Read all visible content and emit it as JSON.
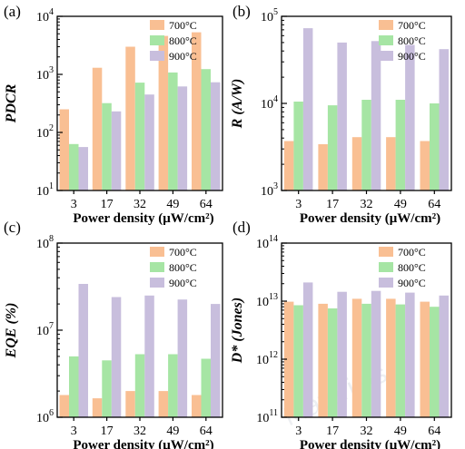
{
  "chart_data": [
    {
      "panel": "(a)",
      "type": "bar",
      "ylabel": "PDCR",
      "xlabel": "Power density (μW/cm²)",
      "categories": [
        "3",
        "17",
        "32",
        "49",
        "64"
      ],
      "yscale": "log",
      "ylim": [
        10,
        10000
      ],
      "yticks": [
        {
          "exp": "1"
        },
        {
          "exp": "2"
        },
        {
          "exp": "3"
        },
        {
          "exp": "4"
        }
      ],
      "legend_position": "top-right",
      "series": [
        {
          "name": "700°C",
          "color": "#f9bf93",
          "values": [
            250,
            1300,
            3000,
            4600,
            5300
          ]
        },
        {
          "name": "800°C",
          "color": "#a6e5a4",
          "values": [
            63,
            320,
            720,
            1080,
            1230
          ]
        },
        {
          "name": "900°C",
          "color": "#c8bedd",
          "values": [
            56,
            230,
            450,
            620,
            730
          ]
        }
      ]
    },
    {
      "panel": "(b)",
      "type": "bar",
      "ylabel": "R (A/W)",
      "xlabel": "Power density (μW/cm²)",
      "categories": [
        "3",
        "17",
        "32",
        "49",
        "64"
      ],
      "yscale": "log",
      "ylim": [
        1000,
        100000
      ],
      "yticks": [
        {
          "exp": "3"
        },
        {
          "exp": "4"
        },
        {
          "exp": "5"
        }
      ],
      "legend_position": "top-right",
      "series": [
        {
          "name": "700°C",
          "color": "#f9bf93",
          "values": [
            3700,
            3400,
            4100,
            4100,
            3700
          ]
        },
        {
          "name": "800°C",
          "color": "#a6e5a4",
          "values": [
            10500,
            9500,
            11000,
            11000,
            10000
          ]
        },
        {
          "name": "900°C",
          "color": "#c8bedd",
          "values": [
            73000,
            50000,
            52000,
            47000,
            42000
          ]
        }
      ]
    },
    {
      "panel": "(c)",
      "type": "bar",
      "ylabel": "EQE (%)",
      "xlabel": "Power density (μW/cm²)",
      "categories": [
        "3",
        "17",
        "32",
        "49",
        "64"
      ],
      "yscale": "log",
      "ylim": [
        1000000,
        100000000
      ],
      "yticks": [
        {
          "exp": "6"
        },
        {
          "exp": "7"
        },
        {
          "exp": "8"
        }
      ],
      "legend_position": "top-right",
      "series": [
        {
          "name": "700°C",
          "color": "#f9bf93",
          "values": [
            1800000,
            1650000,
            2000000,
            2000000,
            1800000
          ]
        },
        {
          "name": "800°C",
          "color": "#a6e5a4",
          "values": [
            5000000,
            4500000,
            5300000,
            5300000,
            4700000
          ]
        },
        {
          "name": "900°C",
          "color": "#c8bedd",
          "values": [
            34000000,
            24000000,
            25000000,
            22500000,
            20000000
          ]
        }
      ]
    },
    {
      "panel": "(d)",
      "type": "bar",
      "ylabel": "D* (Jones)",
      "xlabel": "Power density (μW/cm²)",
      "categories": [
        "3",
        "17",
        "32",
        "49",
        "64"
      ],
      "yscale": "log",
      "ylim": [
        100000000000,
        100000000000000
      ],
      "yticks": [
        {
          "exp": "11"
        },
        {
          "exp": "12"
        },
        {
          "exp": "13"
        },
        {
          "exp": "14"
        }
      ],
      "legend_position": "top-right",
      "series": [
        {
          "name": "700°C",
          "color": "#f9bf93",
          "values": [
            9800000000000,
            9000000000000,
            11000000000000,
            11000000000000,
            9800000000000
          ]
        },
        {
          "name": "800°C",
          "color": "#a6e5a4",
          "values": [
            8500000000000,
            7500000000000,
            9000000000000,
            8800000000000,
            8000000000000
          ]
        },
        {
          "name": "900°C",
          "color": "#c8bedd",
          "values": [
            21000000000000,
            14500000000000,
            15000000000000,
            14000000000000,
            12500000000000
          ]
        }
      ]
    }
  ],
  "watermark": {
    "text": "Materials"
  }
}
